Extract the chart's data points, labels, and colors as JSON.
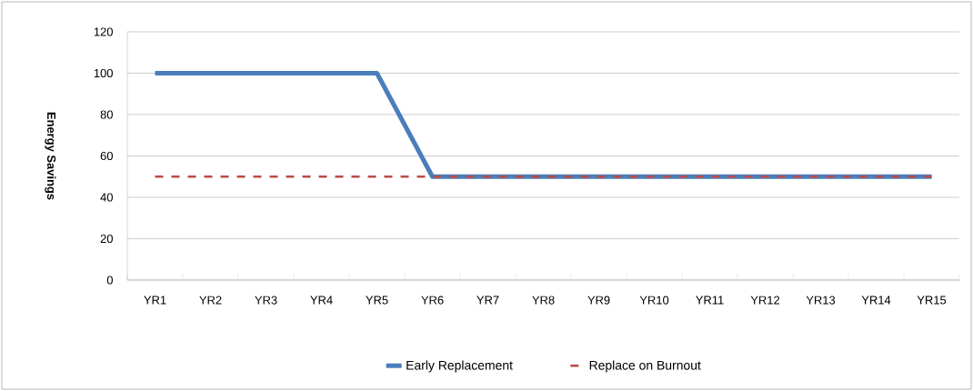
{
  "chart_data": {
    "type": "line",
    "ylabel": "Energy Savings",
    "categories": [
      "YR1",
      "YR2",
      "YR3",
      "YR4",
      "YR5",
      "YR6",
      "YR7",
      "YR8",
      "YR9",
      "YR10",
      "YR11",
      "YR12",
      "YR13",
      "YR14",
      "YR15"
    ],
    "series": [
      {
        "name": "Early Replacement",
        "color": "#4a7ebb",
        "line_style": "solid",
        "values": [
          100,
          100,
          100,
          100,
          100,
          50,
          50,
          50,
          50,
          50,
          50,
          50,
          50,
          50,
          50
        ]
      },
      {
        "name": "Replace on Burnout",
        "color": "#be4b48",
        "line_style": "dashed",
        "values": [
          50,
          50,
          50,
          50,
          50,
          50,
          50,
          50,
          50,
          50,
          50,
          50,
          50,
          50,
          50
        ]
      }
    ],
    "ylim": [
      0,
      120
    ],
    "yticks": [
      0,
      20,
      40,
      60,
      80,
      100,
      120
    ],
    "grid": "y",
    "legend": "bottom"
  }
}
